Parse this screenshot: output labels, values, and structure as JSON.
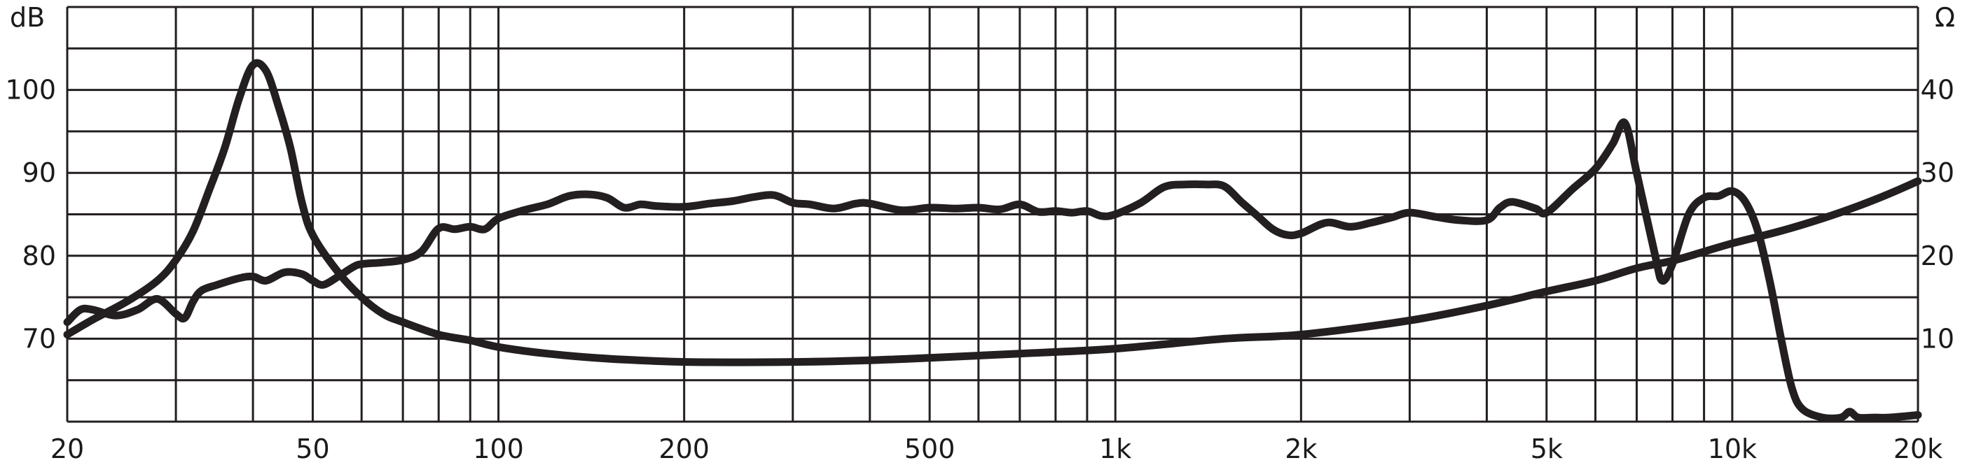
{
  "chart_data": {
    "type": "line",
    "title": "",
    "xlabel": "",
    "x_scale": "log",
    "xlim": [
      20,
      20000
    ],
    "x_ticks": [
      {
        "value": 20,
        "label": "20"
      },
      {
        "value": 50,
        "label": "50"
      },
      {
        "value": 100,
        "label": "100"
      },
      {
        "value": 200,
        "label": "200"
      },
      {
        "value": 500,
        "label": "500"
      },
      {
        "value": 1000,
        "label": "1k"
      },
      {
        "value": 2000,
        "label": "2k"
      },
      {
        "value": 5000,
        "label": "5k"
      },
      {
        "value": 10000,
        "label": "10k"
      },
      {
        "value": 20000,
        "label": "20k"
      }
    ],
    "y_left": {
      "unit": "dB",
      "range": [
        60,
        110
      ],
      "ticks": [
        {
          "value": 70,
          "label": "70"
        },
        {
          "value": 80,
          "label": "80"
        },
        {
          "value": 90,
          "label": "90"
        },
        {
          "value": 100,
          "label": "100"
        }
      ]
    },
    "y_right": {
      "unit": "Ω",
      "range": [
        0,
        50
      ],
      "ticks": [
        {
          "value": 10,
          "label": "10"
        },
        {
          "value": 20,
          "label": "20"
        },
        {
          "value": 30,
          "label": "30"
        },
        {
          "value": 40,
          "label": "40"
        }
      ]
    },
    "grid": true,
    "line_color": "#231f20",
    "series": [
      {
        "axis": "left",
        "x": [
          20,
          21,
          22,
          24,
          26,
          28,
          30,
          31,
          32,
          33,
          35,
          38,
          40,
          42,
          45,
          48,
          50,
          52,
          55,
          58,
          60,
          65,
          70,
          75,
          80,
          85,
          90,
          95,
          100,
          110,
          120,
          130,
          140,
          150,
          160,
          170,
          180,
          200,
          220,
          240,
          260,
          280,
          300,
          320,
          350,
          380,
          400,
          450,
          500,
          550,
          600,
          650,
          700,
          750,
          800,
          850,
          900,
          950,
          1000,
          1100,
          1200,
          1300,
          1400,
          1500,
          1600,
          1700,
          1800,
          1900,
          2000,
          2200,
          2400,
          2600,
          2800,
          3000,
          3300,
          3600,
          4000,
          4200,
          4400,
          4800,
          5000,
          5500,
          6000,
          6400,
          6700,
          7000,
          7500,
          7700,
          8000,
          8500,
          9000,
          9500,
          10000,
          10500,
          11000,
          11500,
          12000,
          12500,
          13000,
          14000,
          15000,
          15500,
          16000,
          17000,
          18000,
          20000
        ],
        "values": [
          72,
          73.5,
          73.5,
          72.8,
          73.5,
          74.8,
          73,
          72.5,
          74.5,
          75.8,
          76.5,
          77.3,
          77.5,
          77,
          78,
          77.8,
          77,
          76.5,
          77.5,
          78.6,
          79,
          79.2,
          79.5,
          80.5,
          83.3,
          83.2,
          83.5,
          83.2,
          84.5,
          85.5,
          86.2,
          87.2,
          87.4,
          87,
          85.8,
          86.2,
          86,
          85.9,
          86.3,
          86.6,
          87.1,
          87.3,
          86.4,
          86.2,
          85.7,
          86.3,
          86.3,
          85.5,
          85.8,
          85.7,
          85.8,
          85.6,
          86.2,
          85.3,
          85.4,
          85.2,
          85.4,
          84.8,
          85,
          86.4,
          88.3,
          88.6,
          88.6,
          88.4,
          86.5,
          84.8,
          83.2,
          82.5,
          82.7,
          84,
          83.5,
          84,
          84.6,
          85.2,
          84.7,
          84.3,
          84.3,
          85.8,
          86.5,
          85.7,
          85.2,
          88,
          90.5,
          93.5,
          96,
          90,
          80,
          77,
          79,
          85,
          87,
          87.2,
          87.8,
          86.5,
          83,
          77,
          70,
          64,
          61.5,
          60.5,
          60.5,
          61.2,
          60.5,
          60.5,
          60.5,
          60.8
        ]
      },
      {
        "axis": "right",
        "x": [
          20,
          22,
          25,
          28,
          30,
          32,
          34,
          36,
          38,
          40,
          42,
          44,
          46,
          48,
          50,
          55,
          60,
          65,
          70,
          80,
          90,
          100,
          120,
          150,
          200,
          300,
          400,
          500,
          700,
          1000,
          1500,
          2000,
          3000,
          4000,
          5000,
          6000,
          7000,
          8000,
          9000,
          10000,
          12000,
          14000,
          16000,
          18000,
          20000
        ],
        "values": [
          10.5,
          12.3,
          14.5,
          17,
          19.5,
          23,
          28,
          33,
          39,
          43,
          42.3,
          38,
          33,
          26.5,
          22.5,
          18,
          15,
          13,
          12,
          10.5,
          9.8,
          9,
          8.2,
          7.6,
          7.2,
          7.2,
          7.4,
          7.7,
          8.2,
          8.8,
          10,
          10.5,
          12.2,
          14,
          15.7,
          17,
          18.5,
          19.4,
          20.5,
          21.5,
          23,
          24.5,
          26,
          27.5,
          29
        ]
      }
    ]
  }
}
